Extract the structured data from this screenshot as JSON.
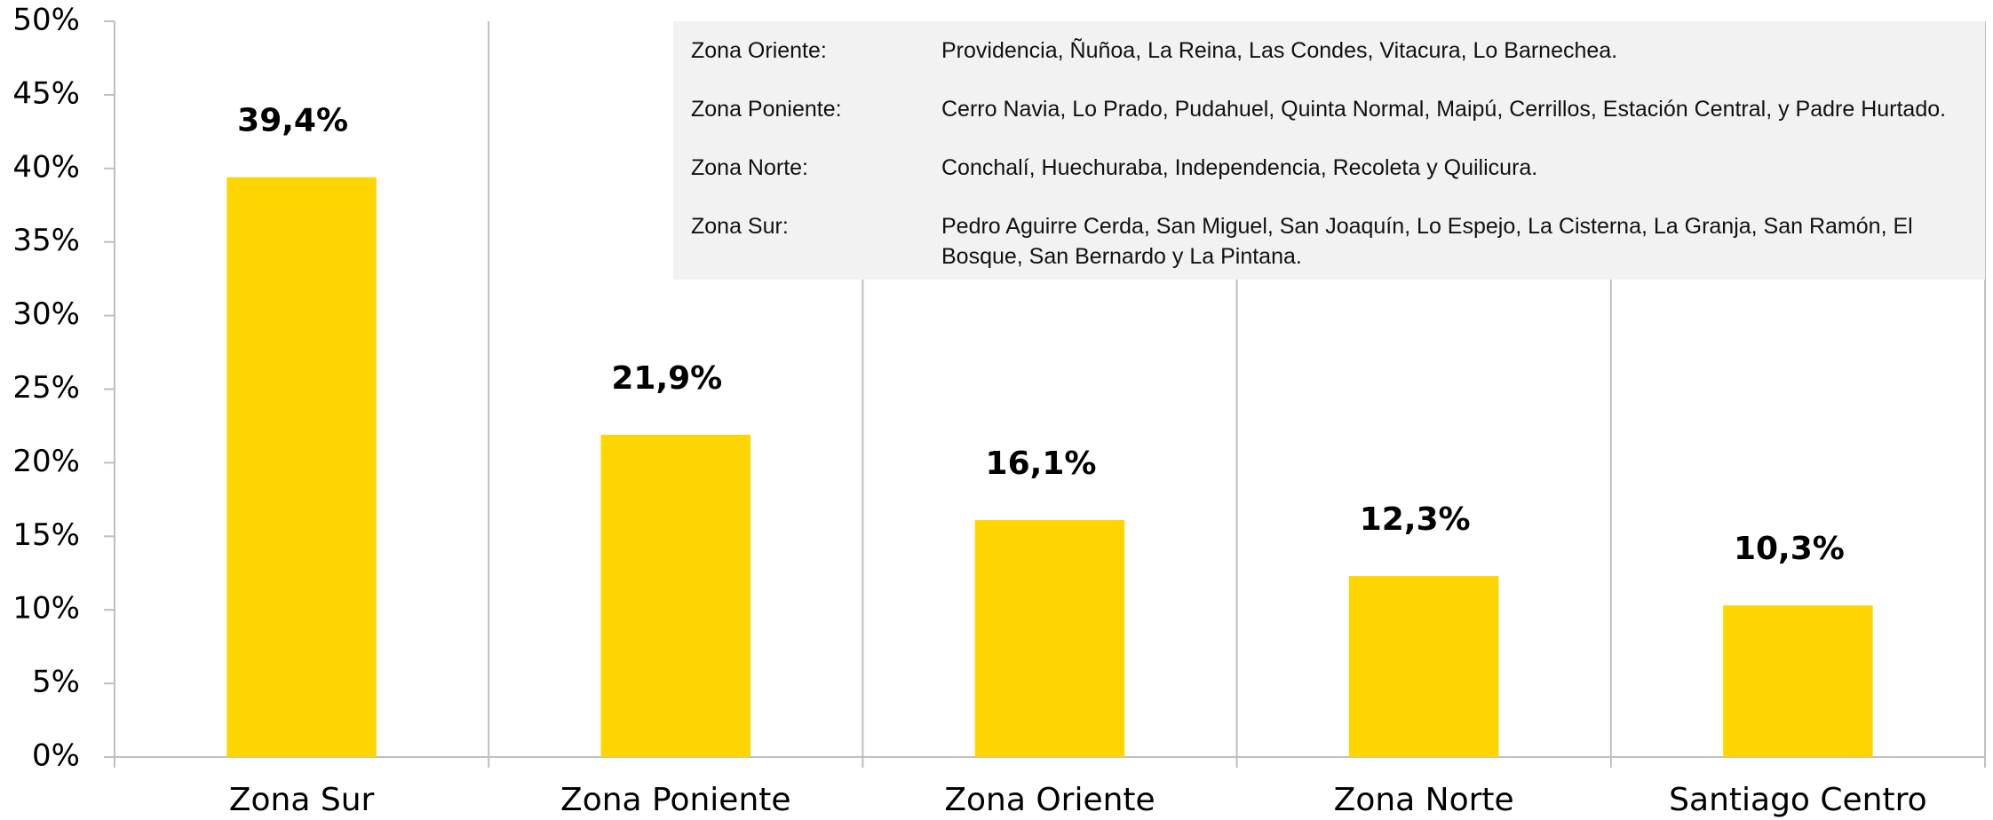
{
  "chart_data": {
    "type": "bar",
    "categories": [
      "Zona Sur",
      "Zona Poniente",
      "Zona Oriente",
      "Zona Norte",
      "Santiago Centro"
    ],
    "values": [
      39.4,
      21.9,
      16.1,
      12.3,
      10.3
    ],
    "value_labels": [
      "39,4%",
      "21,9%",
      "16,1%",
      "12,3%",
      "10,3%"
    ],
    "color": "#ffd500",
    "ylim": [
      0,
      50
    ],
    "yticks": [
      {
        "value": 0,
        "label": "0%"
      },
      {
        "value": 5,
        "label": "5%"
      },
      {
        "value": 10,
        "label": "10%"
      },
      {
        "value": 15,
        "label": "15%"
      },
      {
        "value": 20,
        "label": "20%"
      },
      {
        "value": 25,
        "label": "25%"
      },
      {
        "value": 30,
        "label": "30%"
      },
      {
        "value": 35,
        "label": "35%"
      },
      {
        "value": 40,
        "label": "40%"
      },
      {
        "value": 45,
        "label": "45%"
      },
      {
        "value": 50,
        "label": "50%"
      }
    ],
    "notes": [
      {
        "label": "Zona Oriente:",
        "text": "Providencia, Ñuñoa, La Reina, Las Condes, Vitacura, Lo Barnechea."
      },
      {
        "label": "Zona Poniente:",
        "text": "Cerro Navia, Lo Prado, Pudahuel, Quinta Normal, Maipú, Cerrillos, Estación Central, y Padre Hurtado."
      },
      {
        "label": "Zona Norte:",
        "text": "Conchalí, Huechuraba, Independencia, Recoleta y Quilicura."
      },
      {
        "label": "Zona Sur:",
        "text": "Pedro Aguirre Cerda, San Miguel, San Joaquín, Lo Espejo, La Cisterna, La Granja, San Ramón, El Bosque, San Bernardo y La Pintana."
      }
    ]
  }
}
